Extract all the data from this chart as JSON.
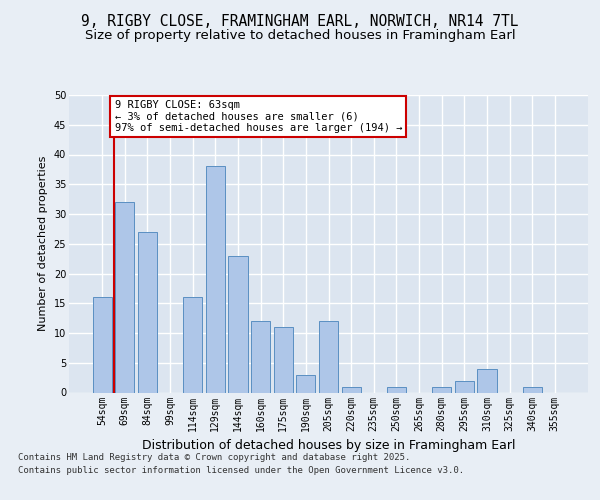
{
  "title1": "9, RIGBY CLOSE, FRAMINGHAM EARL, NORWICH, NR14 7TL",
  "title2": "Size of property relative to detached houses in Framingham Earl",
  "xlabel": "Distribution of detached houses by size in Framingham Earl",
  "ylabel": "Number of detached properties",
  "categories": [
    "54sqm",
    "69sqm",
    "84sqm",
    "99sqm",
    "114sqm",
    "129sqm",
    "144sqm",
    "160sqm",
    "175sqm",
    "190sqm",
    "205sqm",
    "220sqm",
    "235sqm",
    "250sqm",
    "265sqm",
    "280sqm",
    "295sqm",
    "310sqm",
    "325sqm",
    "340sqm",
    "355sqm"
  ],
  "values": [
    16,
    32,
    27,
    0,
    16,
    38,
    23,
    12,
    11,
    3,
    12,
    1,
    0,
    1,
    0,
    1,
    2,
    4,
    0,
    1,
    0
  ],
  "bar_color": "#aec6e8",
  "bar_edge_color": "#5a8fc2",
  "annotation_title": "9 RIGBY CLOSE: 63sqm",
  "annotation_line1": "← 3% of detached houses are smaller (6)",
  "annotation_line2": "97% of semi-detached houses are larger (194) →",
  "ylim": [
    0,
    50
  ],
  "yticks": [
    0,
    5,
    10,
    15,
    20,
    25,
    30,
    35,
    40,
    45,
    50
  ],
  "bg_color": "#e8eef5",
  "plot_bg_color": "#dce5f0",
  "grid_color": "#ffffff",
  "marker_color": "#cc0000",
  "footer_line1": "Contains HM Land Registry data © Crown copyright and database right 2025.",
  "footer_line2": "Contains public sector information licensed under the Open Government Licence v3.0.",
  "title_fontsize": 10.5,
  "subtitle_fontsize": 9.5,
  "tick_fontsize": 7,
  "ylabel_fontsize": 8,
  "xlabel_fontsize": 9,
  "annot_fontsize": 7.5,
  "footer_fontsize": 6.5
}
